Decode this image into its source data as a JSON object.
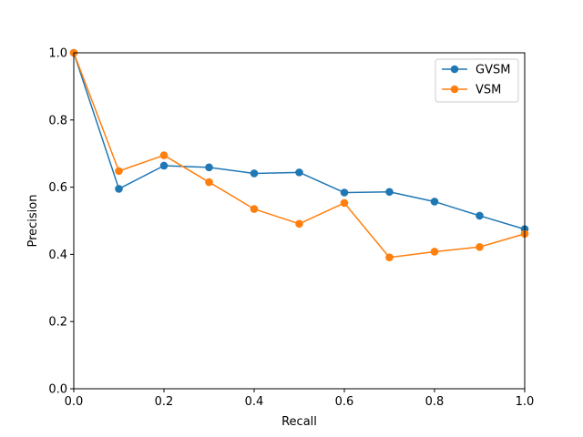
{
  "chart_data": {
    "type": "line",
    "title": "",
    "xlabel": "Recall",
    "ylabel": "Precision",
    "xlim": [
      0,
      1
    ],
    "ylim": [
      0,
      1
    ],
    "xticks": [
      "0.0",
      "0.2",
      "0.4",
      "0.6",
      "0.8",
      "1.0"
    ],
    "yticks": [
      "0.0",
      "0.2",
      "0.4",
      "0.6",
      "0.8",
      "1.0"
    ],
    "grid": false,
    "legend_position": "top-right",
    "x": [
      0.0,
      0.1,
      0.2,
      0.3,
      0.4,
      0.5,
      0.6,
      0.7,
      0.8,
      0.9,
      1.0
    ],
    "series": [
      {
        "name": "GVSM",
        "color": "#1f77b4",
        "marker": "circle",
        "values": [
          1.0,
          0.595,
          0.664,
          0.659,
          0.641,
          0.644,
          0.584,
          0.586,
          0.557,
          0.515,
          0.475
        ]
      },
      {
        "name": "VSM",
        "color": "#ff7f0e",
        "marker": "circle",
        "values": [
          1.0,
          0.648,
          0.695,
          0.615,
          0.535,
          0.491,
          0.553,
          0.391,
          0.408,
          0.422,
          0.461
        ]
      }
    ]
  }
}
